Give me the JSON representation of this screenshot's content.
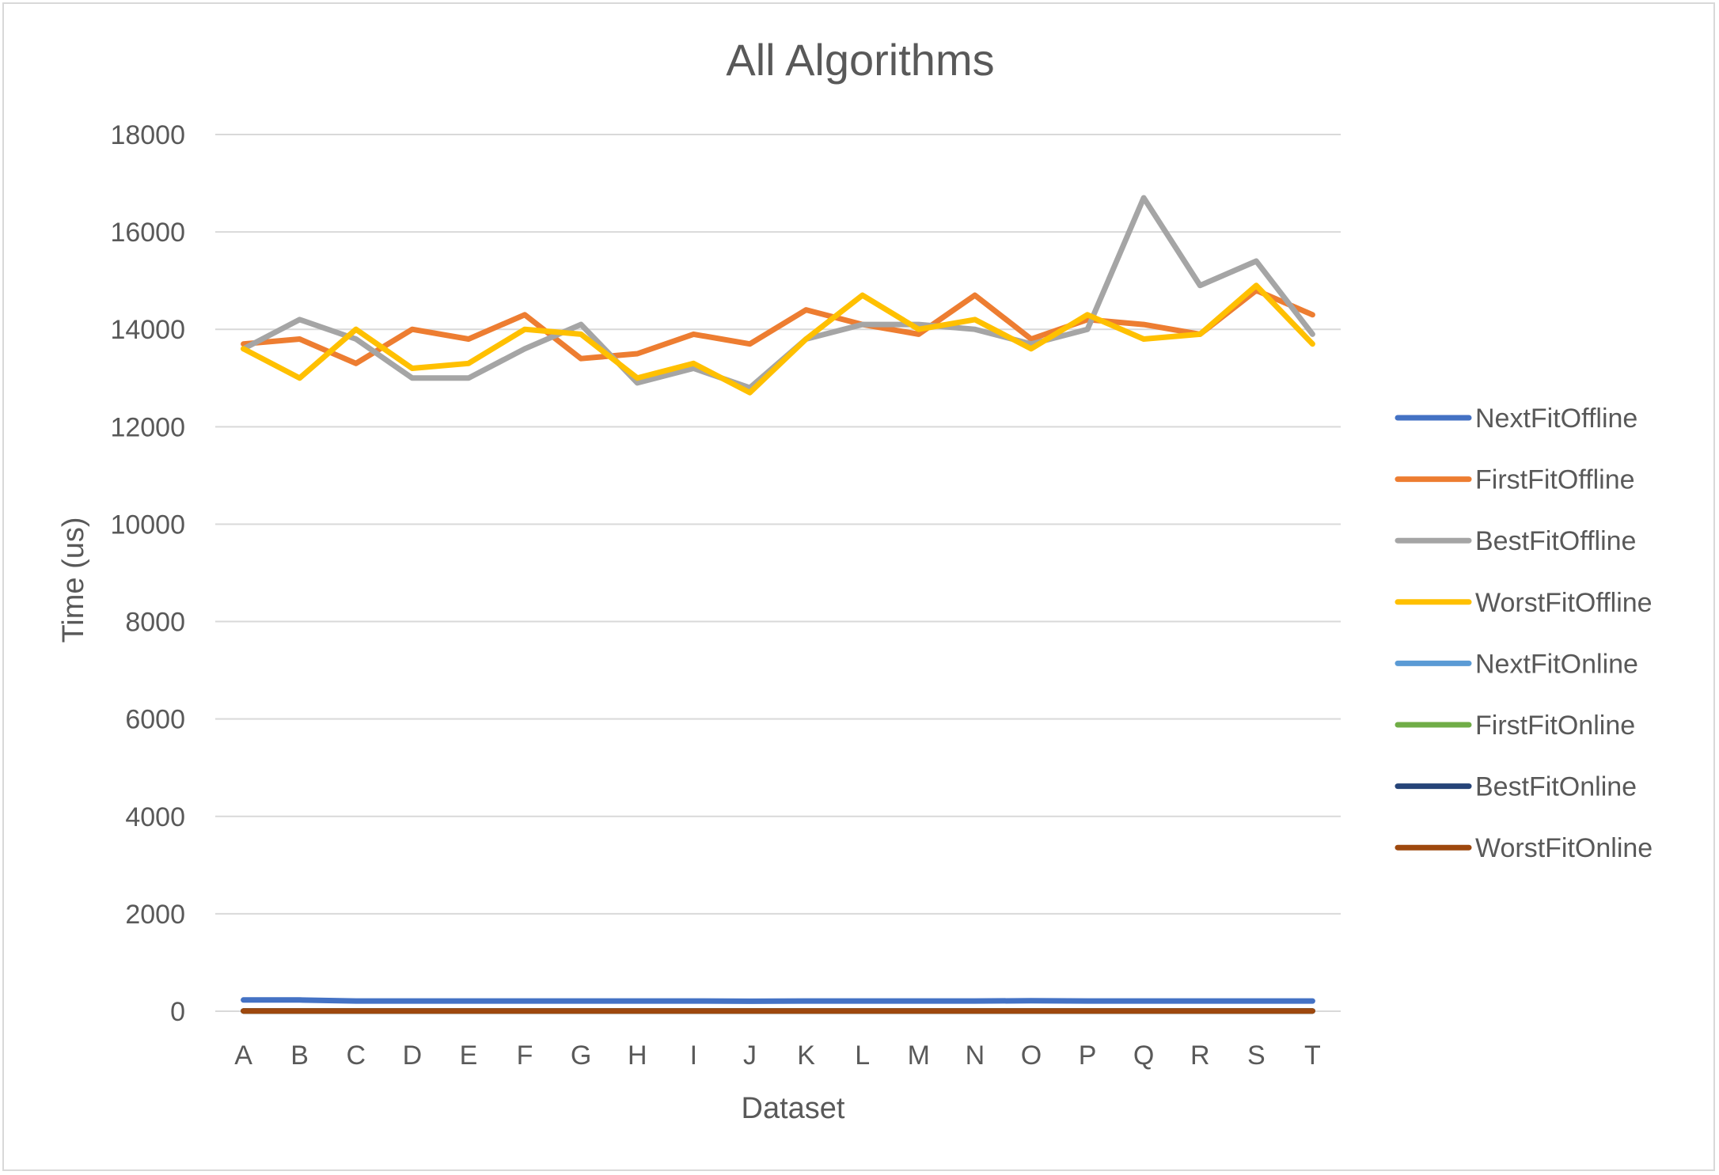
{
  "chart_data": {
    "type": "line",
    "title": "All Algorithms",
    "xlabel": "Dataset",
    "ylabel": "Time (us)",
    "ylim": [
      0,
      18000
    ],
    "yticks": [
      0,
      2000,
      4000,
      6000,
      8000,
      10000,
      12000,
      14000,
      16000,
      18000
    ],
    "grid": true,
    "legend_position": "right",
    "categories": [
      "A",
      "B",
      "C",
      "D",
      "E",
      "F",
      "G",
      "H",
      "I",
      "J",
      "K",
      "L",
      "M",
      "N",
      "O",
      "P",
      "Q",
      "R",
      "S",
      "T"
    ],
    "series": [
      {
        "name": "NextFitOffline",
        "color": "#4472C4",
        "values": [
          230,
          230,
          210,
          210,
          210,
          210,
          210,
          210,
          210,
          205,
          210,
          210,
          210,
          210,
          215,
          210,
          210,
          210,
          210,
          210
        ]
      },
      {
        "name": "FirstFitOffline",
        "color": "#ED7D31",
        "values": [
          13700,
          13800,
          13300,
          14000,
          13800,
          14300,
          13400,
          13500,
          13900,
          13700,
          14400,
          14100,
          13900,
          14700,
          13800,
          14200,
          14100,
          13900,
          14800,
          14300
        ]
      },
      {
        "name": "BestFitOffline",
        "color": "#A5A5A5",
        "values": [
          13600,
          14200,
          13800,
          13000,
          13000,
          13600,
          14100,
          12900,
          13200,
          12800,
          13800,
          14100,
          14100,
          14000,
          13700,
          14000,
          16700,
          14900,
          15400,
          13900
        ]
      },
      {
        "name": "WorstFitOffline",
        "color": "#FFC000",
        "values": [
          13600,
          13000,
          14000,
          13200,
          13300,
          14000,
          13900,
          13000,
          13300,
          12700,
          13800,
          14700,
          14000,
          14200,
          13600,
          14300,
          13800,
          13900,
          14900,
          13700
        ]
      },
      {
        "name": "NextFitOnline",
        "color": "#5B9BD5",
        "values": [
          5,
          5,
          5,
          5,
          5,
          5,
          5,
          5,
          5,
          5,
          5,
          5,
          5,
          5,
          5,
          5,
          5,
          5,
          5,
          5
        ]
      },
      {
        "name": "FirstFitOnline",
        "color": "#70AD47",
        "values": [
          5,
          5,
          5,
          5,
          5,
          5,
          5,
          5,
          5,
          5,
          5,
          5,
          5,
          5,
          5,
          5,
          5,
          5,
          5,
          5
        ]
      },
      {
        "name": "BestFitOnline",
        "color": "#264478",
        "values": [
          5,
          5,
          5,
          5,
          5,
          5,
          5,
          5,
          5,
          5,
          5,
          5,
          5,
          5,
          5,
          5,
          5,
          5,
          5,
          5
        ]
      },
      {
        "name": "WorstFitOnline",
        "color": "#9E480E",
        "values": [
          5,
          5,
          5,
          5,
          5,
          5,
          5,
          5,
          5,
          5,
          5,
          5,
          5,
          5,
          5,
          5,
          5,
          5,
          5,
          5
        ]
      }
    ]
  }
}
